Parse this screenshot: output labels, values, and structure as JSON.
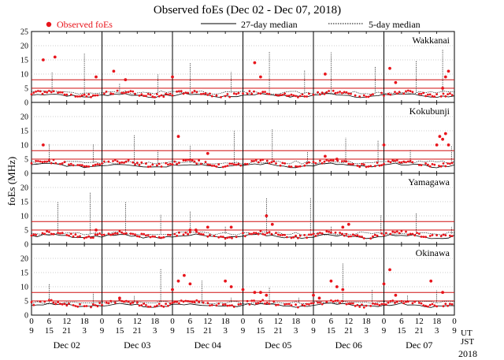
{
  "chart_data": {
    "type": "scatter",
    "title": "Observed foEs (Dec 02 - Dec 07, 2018)",
    "ylabel": "foEs (MHz)",
    "year": "2018",
    "legend": {
      "observed": "Observed foEs",
      "median27": "27-day median",
      "median5": "5-day median"
    },
    "colors": {
      "observed": "#e8141b",
      "median": "#000000",
      "threshold": "#d01010",
      "grid": "#999999"
    },
    "ylim": [
      0,
      25
    ],
    "yticks": [
      0,
      5,
      10,
      15,
      20,
      25
    ],
    "threshold_lines": [
      5,
      8
    ],
    "days": [
      "Dec 02",
      "Dec 03",
      "Dec 04",
      "Dec 05",
      "Dec 06",
      "Dec 07"
    ],
    "axis_labels": {
      "ut": "UT",
      "jst": "JST"
    },
    "ut_ticks": [
      "0",
      "6",
      "12",
      "18",
      "0",
      "6",
      "12",
      "18",
      "0",
      "6",
      "12",
      "18",
      "0",
      "6",
      "12",
      "18",
      "0",
      "6",
      "12",
      "18",
      "0",
      "6",
      "12",
      "18",
      "0"
    ],
    "jst_ticks": [
      "9",
      "15",
      "21",
      "3",
      "9",
      "15",
      "21",
      "3",
      "9",
      "15",
      "21",
      "3",
      "9",
      "15",
      "21",
      "3",
      "9",
      "15",
      "21",
      "3",
      "9",
      "15",
      "21",
      "3",
      "9"
    ],
    "stations": [
      {
        "name": "Wakkanai",
        "base": 3.0,
        "median27": 2.5,
        "spikes": [
          [
            4,
            15
          ],
          [
            8,
            16
          ],
          [
            22,
            9
          ],
          [
            28,
            11
          ],
          [
            32,
            8
          ],
          [
            48,
            9
          ],
          [
            76,
            14
          ],
          [
            78,
            9
          ],
          [
            100,
            10
          ],
          [
            122,
            12
          ],
          [
            124,
            7
          ],
          [
            140,
            5
          ],
          [
            141,
            9
          ],
          [
            142,
            11
          ]
        ]
      },
      {
        "name": "Kokubunji",
        "base": 3.5,
        "median27": 2.8,
        "spikes": [
          [
            4,
            10
          ],
          [
            50,
            13
          ],
          [
            60,
            7
          ],
          [
            100,
            6
          ],
          [
            104,
            5
          ],
          [
            120,
            10
          ],
          [
            138,
            10
          ],
          [
            139,
            13
          ],
          [
            140,
            12
          ],
          [
            141,
            14
          ],
          [
            142,
            10
          ]
        ]
      },
      {
        "name": "Yamagawa",
        "base": 3.3,
        "median27": 2.8,
        "spikes": [
          [
            22,
            5
          ],
          [
            54,
            5
          ],
          [
            56,
            5
          ],
          [
            60,
            6
          ],
          [
            68,
            6
          ],
          [
            80,
            10
          ],
          [
            82,
            7
          ],
          [
            106,
            6
          ],
          [
            108,
            7
          ]
        ]
      },
      {
        "name": "Okinawa",
        "base": 4.0,
        "median27": 3.5,
        "spikes": [
          [
            30,
            6
          ],
          [
            48,
            9
          ],
          [
            50,
            12
          ],
          [
            52,
            14
          ],
          [
            54,
            11
          ],
          [
            66,
            12
          ],
          [
            68,
            10
          ],
          [
            72,
            9
          ],
          [
            76,
            8
          ],
          [
            78,
            8
          ],
          [
            80,
            7
          ],
          [
            96,
            7
          ],
          [
            98,
            6
          ],
          [
            102,
            12
          ],
          [
            104,
            10
          ],
          [
            106,
            9
          ],
          [
            120,
            11
          ],
          [
            122,
            16
          ],
          [
            124,
            7
          ],
          [
            136,
            12
          ],
          [
            140,
            8
          ]
        ]
      }
    ]
  }
}
